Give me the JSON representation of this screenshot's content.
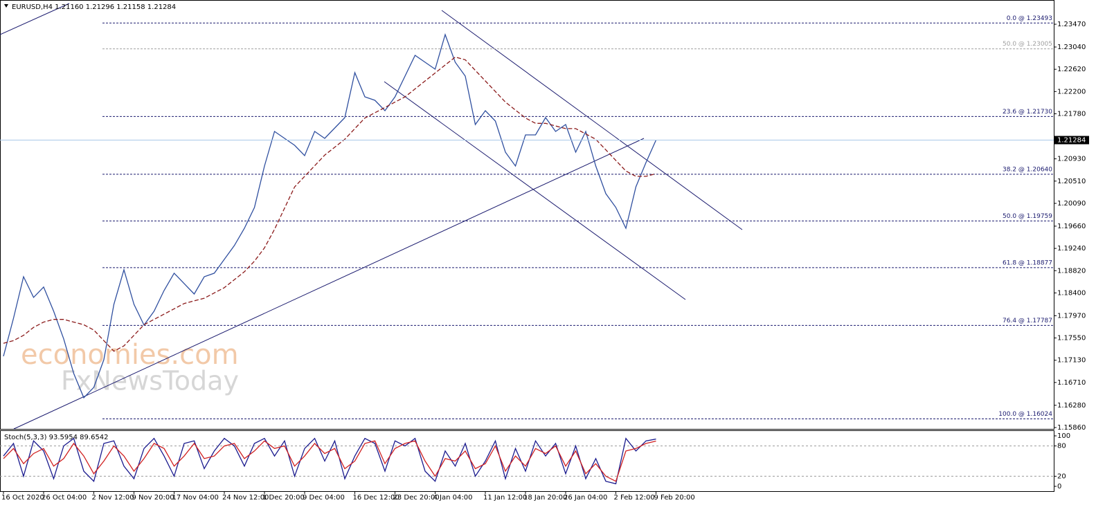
{
  "chart_data": [
    {
      "type": "line",
      "header": "EURUSD,H4  1.21160 1.21296 1.21158 1.21284",
      "watermark": [
        "economies.com",
        "FxNewsToday"
      ],
      "categories": [
        "16 Oct 2020",
        null,
        null,
        null,
        "26 Oct 04:00",
        null,
        null,
        null,
        null,
        "2 Nov 12:00",
        null,
        null,
        null,
        "9 Nov 20:00",
        null,
        null,
        null,
        "17 Nov 04:00",
        null,
        null,
        null,
        null,
        "24 Nov 12:00",
        null,
        null,
        null,
        "1 Dec 20:00",
        null,
        null,
        null,
        "9 Dec 04:00",
        null,
        null,
        null,
        null,
        "16 Dec 12:00",
        null,
        null,
        null,
        "23 Dec 20:00",
        null,
        null,
        null,
        "4 Jan 04:00",
        null,
        null,
        null,
        null,
        "11 Jan 12:00",
        null,
        null,
        null,
        "18 Jan 20:00",
        null,
        null,
        null,
        "26 Jan 04:00",
        null,
        null,
        null,
        null,
        "2 Feb 12:00",
        null,
        null,
        null,
        "9 Feb 20:00"
      ],
      "series": [
        {
          "color": "#2f4f9f",
          "values": [
            1.17205,
            1.17923,
            1.18706,
            1.18315,
            1.18511,
            1.18054,
            1.17532,
            1.1688,
            1.16423,
            1.16619,
            1.17141,
            1.18185,
            1.18837,
            1.18185,
            1.17793,
            1.18054,
            1.18446,
            1.18772,
            1.18576,
            1.1838,
            1.18706,
            1.18772,
            1.19033,
            1.19294,
            1.1962,
            1.20012,
            1.20795,
            1.21447,
            1.21317,
            1.21186,
            1.2099,
            1.21447,
            1.21317,
            1.21512,
            1.21708,
            1.22556,
            1.221,
            1.22034,
            1.21839,
            1.221,
            1.22491,
            1.22883,
            1.22752,
            1.22622,
            1.23274,
            1.22752,
            1.22491,
            1.21578,
            1.21839,
            1.21643,
            1.21056,
            1.20795,
            1.21382,
            1.21382,
            1.21708,
            1.21447,
            1.21578,
            1.21056,
            1.21447,
            1.20795,
            1.20273,
            1.20012,
            1.1962,
            1.20403,
            1.2086,
            1.21284
          ]
        },
        {
          "color": "#8b1a1a",
          "dash": true,
          "values": [
            1.1745,
            1.175,
            1.176,
            1.1775,
            1.1785,
            1.179,
            1.179,
            1.1785,
            1.178,
            1.177,
            1.175,
            1.173,
            1.174,
            1.176,
            1.178,
            1.179,
            1.18,
            1.181,
            1.182,
            1.1825,
            1.183,
            1.184,
            1.185,
            1.1865,
            1.188,
            1.19,
            1.1925,
            1.196,
            1.2,
            1.204,
            1.206,
            1.208,
            1.21,
            1.2115,
            1.213,
            1.215,
            1.217,
            1.218,
            1.219,
            1.22,
            1.221,
            1.2225,
            1.224,
            1.2255,
            1.227,
            1.2285,
            1.228,
            1.226,
            1.224,
            1.222,
            1.22,
            1.2185,
            1.217,
            1.216,
            1.216,
            1.2155,
            1.215,
            1.215,
            1.214,
            1.213,
            1.211,
            1.209,
            1.207,
            1.206,
            1.206,
            1.2065
          ]
        }
      ],
      "ylim": [
        1.15834,
        1.23862
      ],
      "yticks": [
        {
          "value": 1.2347,
          "label": "1.23470"
        },
        {
          "value": 1.2304,
          "label": "1.23040"
        },
        {
          "value": 1.2262,
          "label": "1.22620"
        },
        {
          "value": 1.222,
          "label": "1.22200"
        },
        {
          "value": 1.2178,
          "label": "1.21780"
        },
        {
          "value": 1.2093,
          "label": "1.20930"
        },
        {
          "value": 1.2051,
          "label": "1.20510"
        },
        {
          "value": 1.2009,
          "label": "1.20090"
        },
        {
          "value": 1.1966,
          "label": "1.19660"
        },
        {
          "value": 1.1924,
          "label": "1.19240"
        },
        {
          "value": 1.1882,
          "label": "1.18820"
        },
        {
          "value": 1.184,
          "label": "1.18400"
        },
        {
          "value": 1.1797,
          "label": "1.17970"
        },
        {
          "value": 1.1755,
          "label": "1.17550"
        },
        {
          "value": 1.1713,
          "label": "1.17130"
        },
        {
          "value": 1.1671,
          "label": "1.16710"
        },
        {
          "value": 1.1628,
          "label": "1.16280"
        },
        {
          "value": 1.1586,
          "label": "1.15860"
        }
      ],
      "fib_levels": [
        {
          "label": "0.0 @ 1.23493",
          "value": 1.23493,
          "color": "#1a1a6e"
        },
        {
          "label": "50.0 @ 1.23005",
          "value": 1.23005,
          "color": "#a0a0a0"
        },
        {
          "label": "23.6 @ 1.21730",
          "value": 1.2173,
          "color": "#1a1a6e"
        },
        {
          "label": "38.2 @ 1.20640",
          "value": 1.2064,
          "color": "#1a1a6e"
        },
        {
          "label": "50.0 @ 1.19759",
          "value": 1.19759,
          "color": "#1a1a6e"
        },
        {
          "label": "61.8 @ 1.18877",
          "value": 1.18877,
          "color": "#1a1a6e"
        },
        {
          "label": "76.4 @ 1.17787",
          "value": 1.17787,
          "color": "#1a1a6e"
        },
        {
          "label": "100.0 @ 1.16024",
          "value": 1.16024,
          "color": "#1a1a6e"
        }
      ],
      "last_price": 1.21284
    },
    {
      "type": "line",
      "title": "Stoch(5,3,3) 93.5954 89.6542",
      "series": [
        {
          "color": "#1a1a8e",
          "values": [
            60,
            85,
            20,
            90,
            70,
            15,
            80,
            95,
            30,
            10,
            85,
            90,
            40,
            15,
            75,
            95,
            60,
            20,
            85,
            90,
            35,
            70,
            95,
            80,
            40,
            85,
            95,
            60,
            90,
            20,
            75,
            95,
            50,
            90,
            15,
            60,
            95,
            85,
            30,
            90,
            80,
            95,
            30,
            10,
            70,
            40,
            85,
            20,
            50,
            90,
            15,
            75,
            30,
            90,
            60,
            85,
            25,
            80,
            15,
            55,
            10,
            5,
            95,
            70,
            90,
            93.5954
          ]
        },
        {
          "color": "#d02020",
          "values": [
            55,
            75,
            45,
            65,
            75,
            40,
            55,
            85,
            60,
            25,
            50,
            80,
            60,
            30,
            55,
            85,
            75,
            40,
            60,
            85,
            55,
            60,
            80,
            85,
            55,
            70,
            90,
            75,
            80,
            40,
            60,
            85,
            65,
            75,
            35,
            50,
            85,
            90,
            45,
            75,
            85,
            90,
            50,
            20,
            55,
            50,
            70,
            35,
            45,
            80,
            30,
            60,
            40,
            75,
            65,
            80,
            40,
            70,
            25,
            45,
            20,
            10,
            70,
            75,
            85,
            89.6542
          ]
        }
      ],
      "ylim": [
        -9.6,
        111
      ],
      "yticks": [
        100,
        80,
        20,
        0
      ]
    }
  ]
}
